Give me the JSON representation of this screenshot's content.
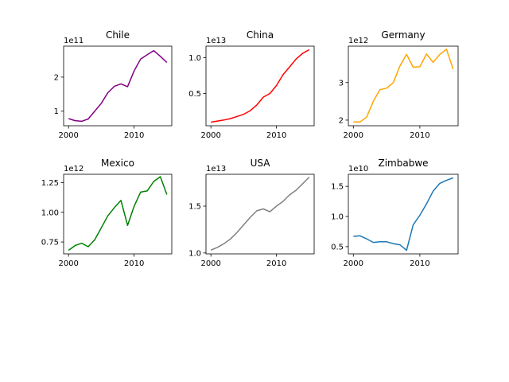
{
  "chart_data": [
    {
      "type": "line",
      "title": "Chile",
      "color": "#800080",
      "scale_label": "1e11",
      "xlim": [
        1999.25,
        2015.75
      ],
      "ylim": [
        0.57,
        2.91
      ],
      "xticks": [
        2000,
        2010
      ],
      "xtick_labels": [
        "2000",
        "2010"
      ],
      "yticks": [
        1,
        2
      ],
      "ytick_labels": [
        "1",
        "2"
      ],
      "x": [
        2000,
        2001,
        2002,
        2003,
        2004,
        2005,
        2006,
        2007,
        2008,
        2009,
        2010,
        2011,
        2012,
        2013,
        2014,
        2015
      ],
      "values": [
        0.78,
        0.72,
        0.7,
        0.77,
        1.0,
        1.23,
        1.54,
        1.73,
        1.8,
        1.72,
        2.18,
        2.53,
        2.66,
        2.78,
        2.61,
        2.43
      ]
    },
    {
      "type": "line",
      "title": "China",
      "color": "#ff0000",
      "scale_label": "1e13",
      "xlim": [
        1999.25,
        2015.75
      ],
      "ylim": [
        0.05,
        1.16
      ],
      "xticks": [
        2000,
        2010
      ],
      "xtick_labels": [
        "2000",
        "2010"
      ],
      "yticks": [
        0.5,
        1.0
      ],
      "ytick_labels": [
        "0.5",
        "1.0"
      ],
      "x": [
        2000,
        2001,
        2002,
        2003,
        2004,
        2005,
        2006,
        2007,
        2008,
        2009,
        2010,
        2011,
        2012,
        2013,
        2014,
        2015
      ],
      "values": [
        0.1,
        0.115,
        0.13,
        0.15,
        0.18,
        0.21,
        0.26,
        0.34,
        0.45,
        0.5,
        0.61,
        0.76,
        0.87,
        0.98,
        1.06,
        1.11
      ]
    },
    {
      "type": "line",
      "title": "Germany",
      "color": "#ffa500",
      "scale_label": "1e12",
      "xlim": [
        1999.25,
        2015.75
      ],
      "ylim": [
        1.85,
        3.97
      ],
      "xticks": [
        2000,
        2010
      ],
      "xtick_labels": [
        "2000",
        "2010"
      ],
      "yticks": [
        2,
        3
      ],
      "ytick_labels": [
        "2",
        "3"
      ],
      "x": [
        2000,
        2001,
        2002,
        2003,
        2004,
        2005,
        2006,
        2007,
        2008,
        2009,
        2010,
        2011,
        2012,
        2013,
        2014,
        2015
      ],
      "values": [
        1.95,
        1.95,
        2.08,
        2.5,
        2.81,
        2.85,
        3.0,
        3.44,
        3.75,
        3.41,
        3.42,
        3.76,
        3.54,
        3.75,
        3.89,
        3.36
      ]
    },
    {
      "type": "line",
      "title": "Mexico",
      "color": "#008000",
      "scale_label": "1e12",
      "xlim": [
        1999.25,
        2015.75
      ],
      "ylim": [
        0.65,
        1.32
      ],
      "xticks": [
        2000,
        2010
      ],
      "xtick_labels": [
        "2000",
        "2010"
      ],
      "yticks": [
        0.75,
        1.0,
        1.25
      ],
      "ytick_labels": [
        "0.75",
        "1.00",
        "1.25"
      ],
      "x": [
        2000,
        2001,
        2002,
        2003,
        2004,
        2005,
        2006,
        2007,
        2008,
        2009,
        2010,
        2011,
        2012,
        2013,
        2014,
        2015
      ],
      "values": [
        0.68,
        0.72,
        0.74,
        0.71,
        0.77,
        0.87,
        0.97,
        1.04,
        1.1,
        0.89,
        1.05,
        1.17,
        1.18,
        1.26,
        1.3,
        1.15
      ]
    },
    {
      "type": "line",
      "title": "USA",
      "color": "#808080",
      "scale_label": "1e13",
      "xlim": [
        1999.25,
        2015.75
      ],
      "ylim": [
        0.99,
        1.84
      ],
      "xticks": [
        2000,
        2010
      ],
      "xtick_labels": [
        "2000",
        "2010"
      ],
      "yticks": [
        1.0,
        1.5
      ],
      "ytick_labels": [
        "1.0",
        "1.5"
      ],
      "x": [
        2000,
        2001,
        2002,
        2003,
        2004,
        2005,
        2006,
        2007,
        2008,
        2009,
        2010,
        2011,
        2012,
        2013,
        2014,
        2015
      ],
      "values": [
        1.03,
        1.06,
        1.1,
        1.15,
        1.22,
        1.3,
        1.38,
        1.45,
        1.47,
        1.44,
        1.5,
        1.55,
        1.62,
        1.67,
        1.74,
        1.81
      ]
    },
    {
      "type": "line",
      "title": "Zimbabwe",
      "color": "#1f77b4",
      "scale_label": "1e10",
      "xlim": [
        1999.25,
        2015.75
      ],
      "ylim": [
        0.38,
        1.7
      ],
      "xticks": [
        2000,
        2010
      ],
      "xtick_labels": [
        "2000",
        "2010"
      ],
      "yticks": [
        0.5,
        1.0,
        1.5
      ],
      "ytick_labels": [
        "0.5",
        "1.0",
        "1.5"
      ],
      "x": [
        2000,
        2001,
        2002,
        2003,
        2004,
        2005,
        2006,
        2007,
        2008,
        2009,
        2010,
        2011,
        2012,
        2013,
        2014,
        2015
      ],
      "values": [
        0.67,
        0.68,
        0.63,
        0.57,
        0.58,
        0.58,
        0.55,
        0.53,
        0.44,
        0.86,
        1.02,
        1.21,
        1.42,
        1.55,
        1.6,
        1.64
      ]
    }
  ]
}
